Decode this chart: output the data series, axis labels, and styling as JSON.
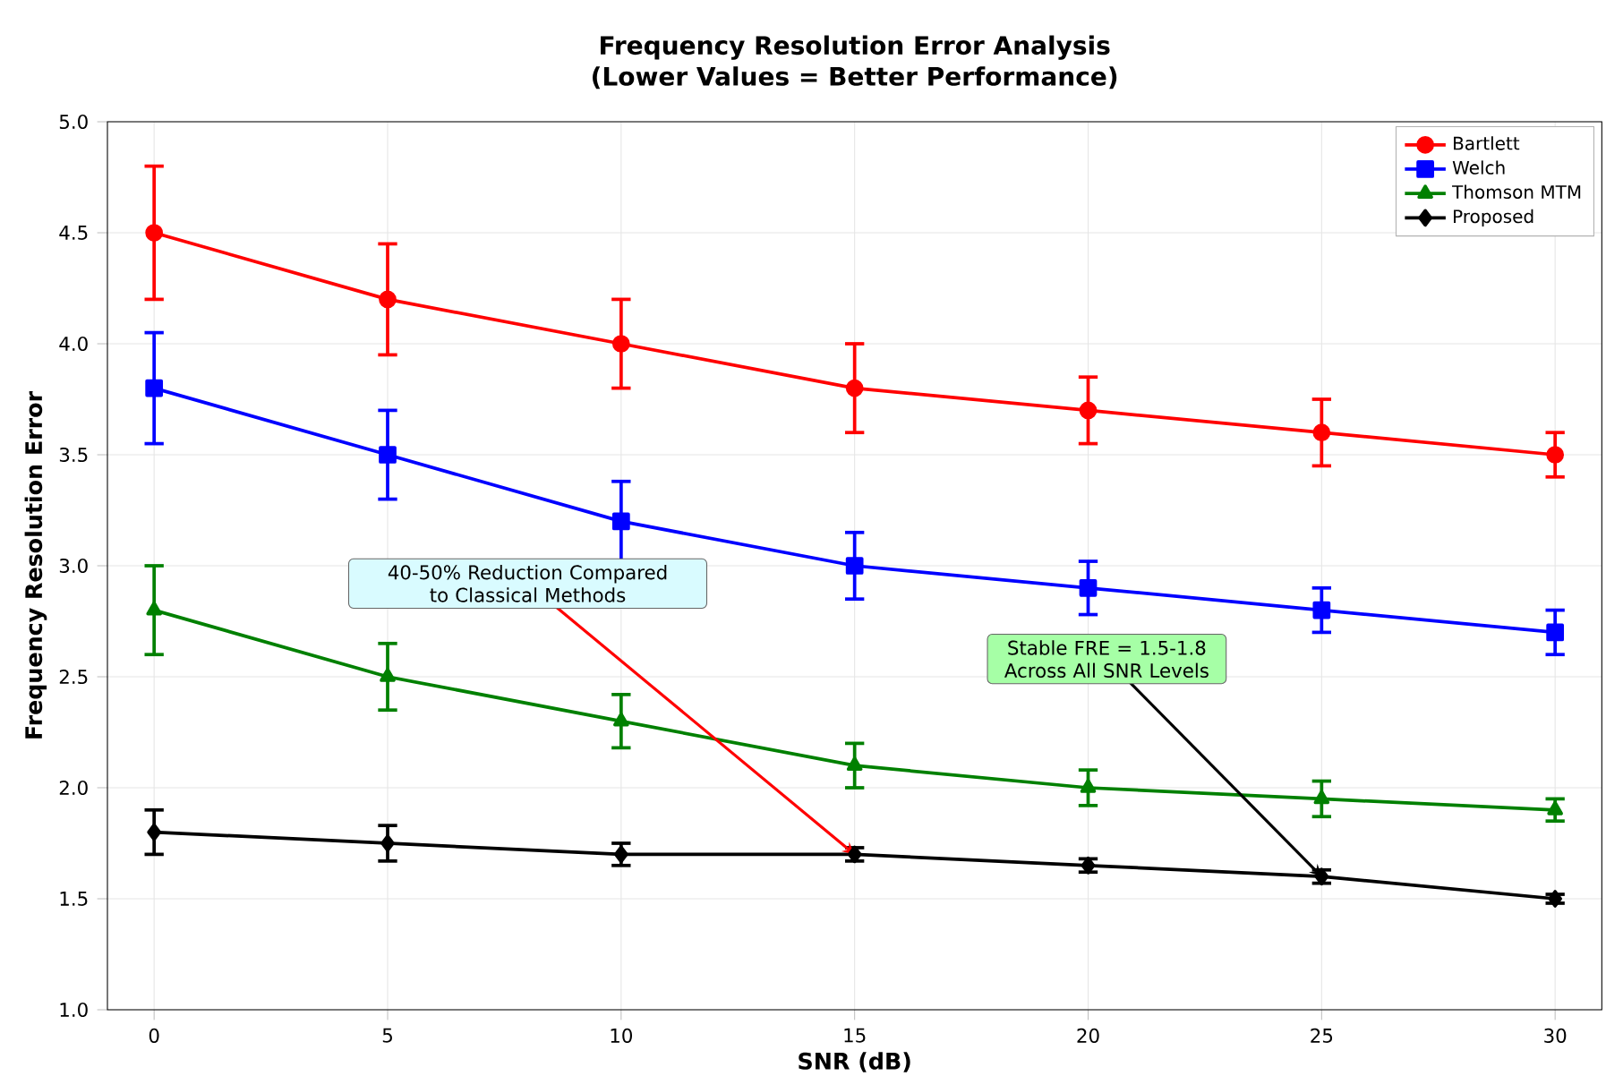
{
  "chart_data": {
    "type": "line",
    "title": "Frequency Resolution Error Analysis",
    "subtitle": "(Lower Values = Better Performance)",
    "xlabel": "SNR (dB)",
    "ylabel": "Frequency Resolution Error",
    "x": [
      0,
      5,
      10,
      15,
      20,
      25,
      30
    ],
    "series": [
      {
        "name": "Bartlett",
        "color": "#ff0000",
        "marker": "circle",
        "values": [
          4.5,
          4.2,
          4.0,
          3.8,
          3.7,
          3.6,
          3.5
        ],
        "errors": [
          0.3,
          0.25,
          0.2,
          0.2,
          0.15,
          0.15,
          0.1
        ]
      },
      {
        "name": "Welch",
        "color": "#0000ff",
        "marker": "square",
        "values": [
          3.8,
          3.5,
          3.2,
          3.0,
          2.9,
          2.8,
          2.7
        ],
        "errors": [
          0.25,
          0.2,
          0.18,
          0.15,
          0.12,
          0.1,
          0.1
        ]
      },
      {
        "name": "Thomson MTM",
        "color": "#008000",
        "marker": "triangle",
        "values": [
          2.8,
          2.5,
          2.3,
          2.1,
          2.0,
          1.95,
          1.9
        ],
        "errors": [
          0.2,
          0.15,
          0.12,
          0.1,
          0.08,
          0.08,
          0.05
        ]
      },
      {
        "name": "Proposed",
        "color": "#000000",
        "marker": "diamond",
        "values": [
          1.8,
          1.75,
          1.7,
          1.7,
          1.65,
          1.6,
          1.5
        ],
        "errors": [
          0.1,
          0.08,
          0.05,
          0.03,
          0.03,
          0.03,
          0.02
        ]
      }
    ],
    "xlim": [
      -1,
      31
    ],
    "ylim": [
      1.0,
      5.0
    ],
    "xticks": [
      0,
      5,
      10,
      15,
      20,
      25,
      30
    ],
    "yticks": [
      {
        "value": 1.0,
        "label": "1.0"
      },
      {
        "value": 1.5,
        "label": "1.5"
      },
      {
        "value": 2.0,
        "label": "2.0"
      },
      {
        "value": 2.5,
        "label": "2.5"
      },
      {
        "value": 3.0,
        "label": "3.0"
      },
      {
        "value": 3.5,
        "label": "3.5"
      },
      {
        "value": 4.0,
        "label": "4.0"
      },
      {
        "value": 4.5,
        "label": "4.5"
      },
      {
        "value": 5.0,
        "label": "5.0"
      }
    ],
    "grid": true,
    "legend": "top right",
    "line_style": "solid",
    "annotations": [
      {
        "text": "40-50% Reduction Compared to Classical Methods",
        "x": 15,
        "y": 1.7
      },
      {
        "text": "Stable FRE = 1.5-1.8 Across All SNR Levels",
        "x": 25,
        "y": 1.6
      }
    ]
  }
}
